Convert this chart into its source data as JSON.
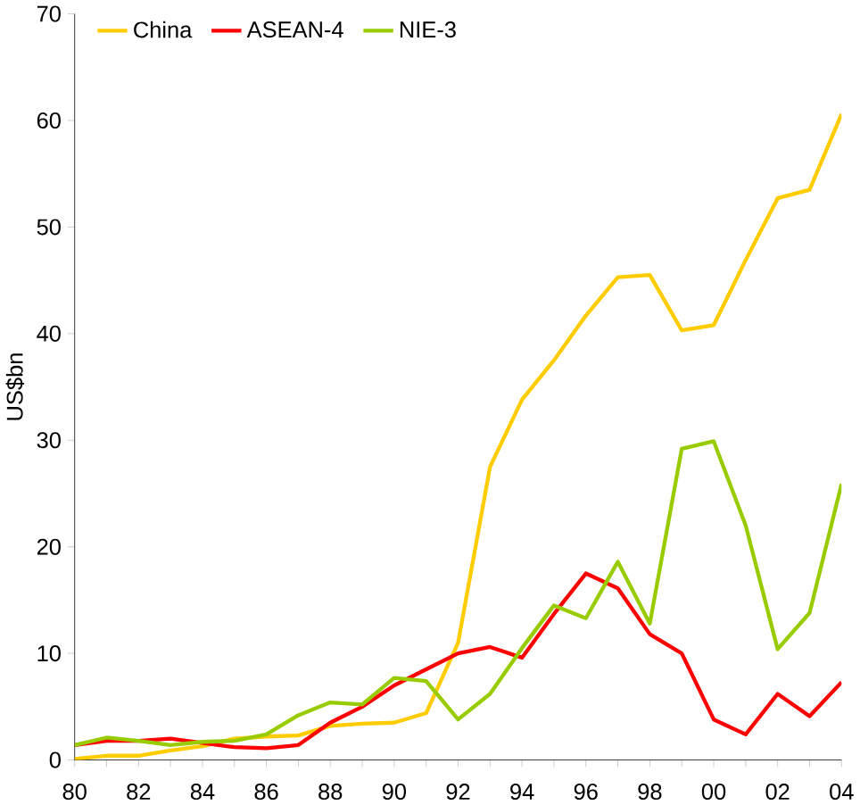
{
  "chart_data": {
    "type": "line",
    "ylabel": "US$bn",
    "categories": [
      "80",
      null,
      "82",
      null,
      "84",
      null,
      "86",
      null,
      "88",
      null,
      "90",
      null,
      "92",
      null,
      "94",
      null,
      "96",
      null,
      "98",
      null,
      "00",
      null,
      "02",
      null,
      "04"
    ],
    "series": [
      {
        "name": "China",
        "color": "#ffcc00",
        "values": [
          0.1,
          0.4,
          0.4,
          0.9,
          1.3,
          2.0,
          2.2,
          2.3,
          3.2,
          3.4,
          3.5,
          4.4,
          11,
          27.5,
          33.8,
          37.5,
          41.7,
          45.3,
          45.5,
          40.3,
          40.8,
          46.9,
          52.7,
          53.5,
          60.6
        ]
      },
      {
        "name": "ASEAN-4",
        "color": "#ff0000",
        "values": [
          1.4,
          1.8,
          1.8,
          2.0,
          1.6,
          1.2,
          1.1,
          1.4,
          3.5,
          5.0,
          7.0,
          8.5,
          10,
          10.6,
          9.6,
          13.7,
          17.5,
          16.1,
          11.8,
          10.0,
          3.8,
          2.4,
          6.2,
          4.1,
          7.3
        ]
      },
      {
        "name": "NIE-3",
        "color": "#99cc00",
        "values": [
          1.4,
          2.1,
          1.8,
          1.4,
          1.7,
          1.8,
          2.4,
          4.2,
          5.4,
          5.2,
          7.7,
          7.4,
          3.8,
          6.2,
          10.5,
          14.5,
          13.3,
          18.6,
          12.8,
          29.2,
          29.9,
          22,
          10.4,
          13.8,
          25.9
        ]
      }
    ],
    "ylim": [
      0,
      70
    ],
    "yticks": [
      0,
      10,
      20,
      30,
      40,
      50,
      60,
      70
    ],
    "grid": false,
    "legend": "top",
    "marker": "none",
    "line_style": "solid"
  }
}
